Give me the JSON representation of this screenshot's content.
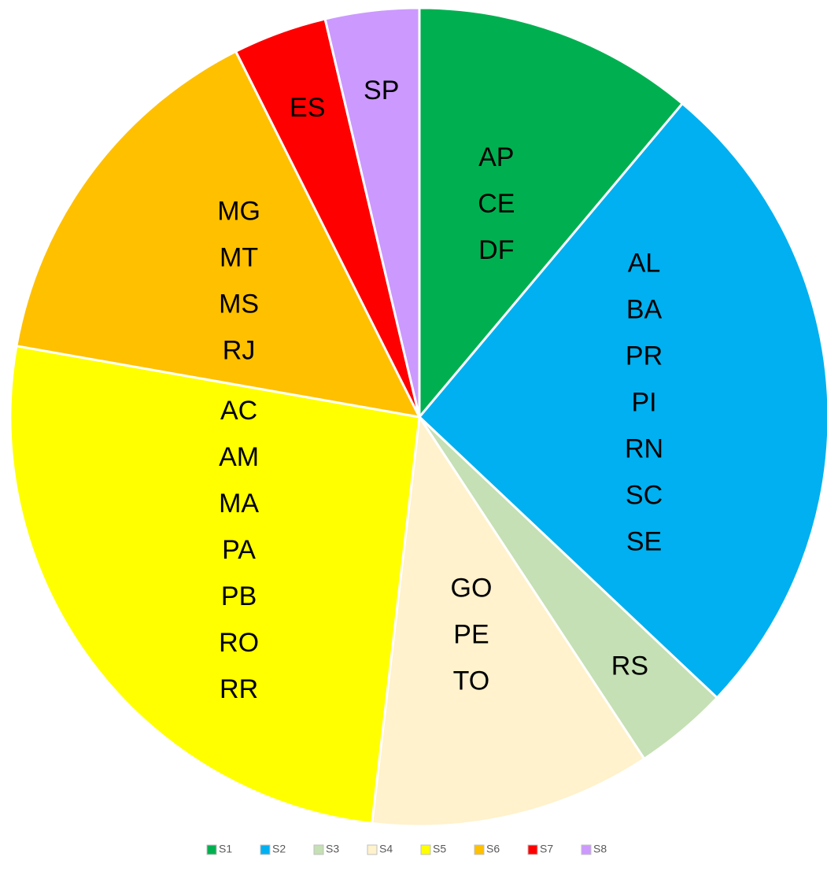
{
  "chart_data": {
    "type": "pie",
    "categories": [
      "S1",
      "S2",
      "S3",
      "S4",
      "S5",
      "S6",
      "S7",
      "S8"
    ],
    "values": [
      3,
      7,
      1,
      3,
      7,
      4,
      1,
      1
    ],
    "colors": [
      "#00b050",
      "#00b0f0",
      "#c5e0b4",
      "#fff2cc",
      "#ffff00",
      "#ffc000",
      "#ff0000",
      "#cc99ff"
    ],
    "slice_labels": [
      [
        "AP",
        "CE",
        "DF"
      ],
      [
        "AL",
        "BA",
        "PR",
        "PI",
        "RN",
        "SC",
        "SE"
      ],
      [
        "RS"
      ],
      [
        "GO",
        "PE",
        "TO"
      ],
      [
        "AC",
        "AM",
        "MA",
        "PA",
        "PB",
        "RO",
        "RR"
      ],
      [
        "MG",
        "MT",
        "MS",
        "RJ"
      ],
      [
        "ES"
      ],
      [
        "SP"
      ]
    ],
    "legend": "bottom"
  }
}
